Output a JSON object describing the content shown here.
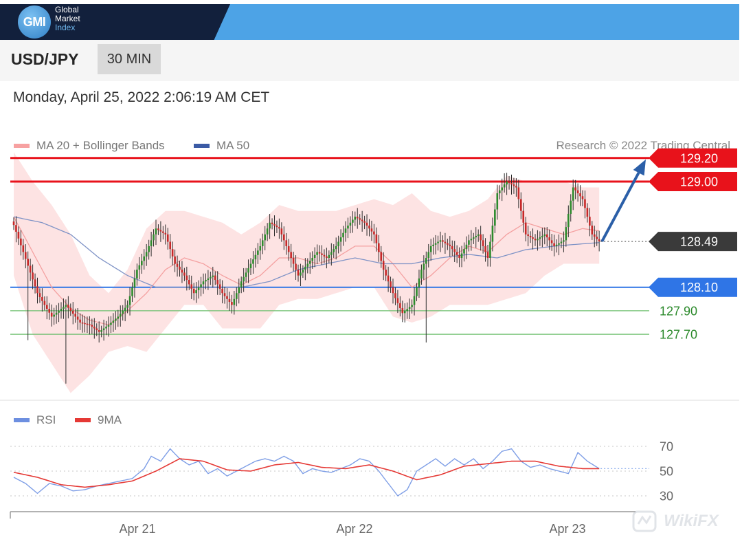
{
  "brand": {
    "logo_abbrev": "GMI",
    "name_lines": [
      "Global",
      "Market",
      "Index"
    ]
  },
  "header": {
    "symbol": "USD/JPY",
    "interval": "30 MIN"
  },
  "timestamp": "Monday, April 25, 2022 2:06:19 AM CET",
  "legend": {
    "ma_bb": {
      "label": "MA 20 + Bollinger Bands",
      "color": "#f7a1a1"
    },
    "ma50": {
      "label": "MA 50",
      "color": "#3b5ba5"
    }
  },
  "credit": "Research © 2022 Trading Central",
  "rsi_legend": {
    "rsi": {
      "label": "RSI",
      "color": "#6d8fe0"
    },
    "ma9": {
      "label": "9MA",
      "color": "#e53935"
    }
  },
  "watermark": "WikiFX",
  "chart_data": [
    {
      "type": "line",
      "name": "price",
      "ylim": [
        127.15,
        129.55
      ],
      "x_ticks": [
        "Apr 21",
        "Apr 22",
        "Apr 23"
      ],
      "levels": [
        {
          "value": 129.2,
          "label": "129.20",
          "color": "#e8121b",
          "style": "line-badge"
        },
        {
          "value": 129.0,
          "label": "129.00",
          "color": "#e8121b",
          "style": "line-badge"
        },
        {
          "value": 128.49,
          "label": "128.49",
          "color": "#3a3a3a",
          "style": "dotted-badge"
        },
        {
          "value": 128.1,
          "label": "128.10",
          "color": "#2f75e6",
          "style": "line-badge"
        },
        {
          "value": 127.9,
          "label": "127.90",
          "color": "#2c8a2c",
          "style": "line-text"
        },
        {
          "value": 127.7,
          "label": "127.70",
          "color": "#2c8a2c",
          "style": "line-text"
        }
      ],
      "forecast_arrow": {
        "from": 128.49,
        "to": 129.2,
        "color": "#2b5fa8"
      },
      "anchors": {
        "close": [
          [
            0,
            128.63
          ],
          [
            4,
            128.4
          ],
          [
            10,
            128.05
          ],
          [
            16,
            127.85
          ],
          [
            22,
            127.95
          ],
          [
            28,
            127.8
          ],
          [
            32,
            127.78
          ],
          [
            36,
            127.72
          ],
          [
            40,
            127.78
          ],
          [
            44,
            127.85
          ],
          [
            48,
            127.95
          ],
          [
            52,
            128.25
          ],
          [
            56,
            128.4
          ],
          [
            60,
            128.6
          ],
          [
            64,
            128.55
          ],
          [
            68,
            128.3
          ],
          [
            72,
            128.2
          ],
          [
            76,
            128.05
          ],
          [
            80,
            128.15
          ],
          [
            84,
            128.2
          ],
          [
            88,
            128.05
          ],
          [
            92,
            127.95
          ],
          [
            96,
            128.15
          ],
          [
            100,
            128.3
          ],
          [
            104,
            128.45
          ],
          [
            108,
            128.65
          ],
          [
            112,
            128.6
          ],
          [
            116,
            128.4
          ],
          [
            120,
            128.2
          ],
          [
            124,
            128.3
          ],
          [
            128,
            128.4
          ],
          [
            132,
            128.35
          ],
          [
            136,
            128.45
          ],
          [
            140,
            128.6
          ],
          [
            144,
            128.7
          ],
          [
            148,
            128.65
          ],
          [
            152,
            128.55
          ],
          [
            156,
            128.25
          ],
          [
            160,
            128.05
          ],
          [
            164,
            127.88
          ],
          [
            168,
            127.95
          ],
          [
            172,
            128.25
          ],
          [
            176,
            128.45
          ],
          [
            180,
            128.5
          ],
          [
            184,
            128.45
          ],
          [
            188,
            128.35
          ],
          [
            192,
            128.5
          ],
          [
            196,
            128.55
          ],
          [
            200,
            128.35
          ],
          [
            204,
            128.9
          ],
          [
            208,
            129.0
          ],
          [
            212,
            128.95
          ],
          [
            216,
            128.55
          ],
          [
            220,
            128.5
          ],
          [
            224,
            128.55
          ],
          [
            228,
            128.45
          ],
          [
            232,
            128.5
          ],
          [
            236,
            128.95
          ],
          [
            240,
            128.85
          ],
          [
            244,
            128.55
          ],
          [
            247,
            128.49
          ]
        ],
        "ma20": [
          [
            0,
            128.7
          ],
          [
            8,
            128.4
          ],
          [
            16,
            128.1
          ],
          [
            24,
            127.92
          ],
          [
            32,
            127.82
          ],
          [
            40,
            127.78
          ],
          [
            48,
            127.9
          ],
          [
            56,
            128.05
          ],
          [
            64,
            128.25
          ],
          [
            72,
            128.35
          ],
          [
            80,
            128.3
          ],
          [
            88,
            128.2
          ],
          [
            96,
            128.12
          ],
          [
            104,
            128.2
          ],
          [
            112,
            128.35
          ],
          [
            120,
            128.35
          ],
          [
            128,
            128.3
          ],
          [
            136,
            128.35
          ],
          [
            144,
            128.45
          ],
          [
            152,
            128.45
          ],
          [
            160,
            128.3
          ],
          [
            168,
            128.1
          ],
          [
            176,
            128.2
          ],
          [
            184,
            128.35
          ],
          [
            192,
            128.45
          ],
          [
            200,
            128.4
          ],
          [
            208,
            128.55
          ],
          [
            216,
            128.65
          ],
          [
            224,
            128.6
          ],
          [
            232,
            128.55
          ],
          [
            240,
            128.6
          ],
          [
            247,
            128.58
          ]
        ],
        "bb_upper": [
          [
            0,
            129.25
          ],
          [
            8,
            129.0
          ],
          [
            16,
            128.8
          ],
          [
            24,
            128.55
          ],
          [
            32,
            128.2
          ],
          [
            40,
            128.05
          ],
          [
            48,
            128.25
          ],
          [
            56,
            128.6
          ],
          [
            64,
            128.75
          ],
          [
            72,
            128.75
          ],
          [
            80,
            128.7
          ],
          [
            88,
            128.65
          ],
          [
            96,
            128.55
          ],
          [
            104,
            128.65
          ],
          [
            112,
            128.8
          ],
          [
            120,
            128.75
          ],
          [
            128,
            128.75
          ],
          [
            136,
            128.75
          ],
          [
            144,
            128.8
          ],
          [
            152,
            128.85
          ],
          [
            160,
            128.8
          ],
          [
            168,
            128.9
          ],
          [
            176,
            128.75
          ],
          [
            184,
            128.7
          ],
          [
            192,
            128.75
          ],
          [
            200,
            128.85
          ],
          [
            208,
            129.05
          ],
          [
            216,
            129.0
          ],
          [
            224,
            129.0
          ],
          [
            232,
            129.0
          ],
          [
            240,
            128.95
          ],
          [
            247,
            128.95
          ]
        ],
        "bb_lower": [
          [
            0,
            128.2
          ],
          [
            8,
            127.7
          ],
          [
            16,
            127.45
          ],
          [
            24,
            127.2
          ],
          [
            32,
            127.35
          ],
          [
            40,
            127.55
          ],
          [
            48,
            127.6
          ],
          [
            56,
            127.55
          ],
          [
            64,
            127.75
          ],
          [
            72,
            127.95
          ],
          [
            80,
            127.95
          ],
          [
            88,
            127.75
          ],
          [
            96,
            127.75
          ],
          [
            104,
            127.75
          ],
          [
            112,
            127.95
          ],
          [
            120,
            128.0
          ],
          [
            128,
            128.0
          ],
          [
            136,
            128.05
          ],
          [
            144,
            128.1
          ],
          [
            152,
            128.1
          ],
          [
            160,
            127.85
          ],
          [
            168,
            127.8
          ],
          [
            176,
            127.85
          ],
          [
            184,
            127.95
          ],
          [
            192,
            127.95
          ],
          [
            200,
            127.95
          ],
          [
            208,
            128.0
          ],
          [
            216,
            128.05
          ],
          [
            224,
            128.2
          ],
          [
            232,
            128.3
          ],
          [
            240,
            128.3
          ],
          [
            247,
            128.3
          ]
        ],
        "ma50": [
          [
            0,
            128.7
          ],
          [
            12,
            128.65
          ],
          [
            24,
            128.55
          ],
          [
            36,
            128.35
          ],
          [
            48,
            128.2
          ],
          [
            60,
            128.1
          ],
          [
            72,
            128.1
          ],
          [
            84,
            128.1
          ],
          [
            96,
            128.1
          ],
          [
            108,
            128.15
          ],
          [
            120,
            128.25
          ],
          [
            132,
            128.3
          ],
          [
            144,
            128.35
          ],
          [
            156,
            128.3
          ],
          [
            168,
            128.3
          ],
          [
            180,
            128.35
          ],
          [
            192,
            128.38
          ],
          [
            204,
            128.35
          ],
          [
            216,
            128.42
          ],
          [
            228,
            128.45
          ],
          [
            240,
            128.47
          ],
          [
            247,
            128.48
          ]
        ]
      }
    },
    {
      "type": "line",
      "name": "rsi",
      "ylim": [
        25,
        75
      ],
      "y_ticks": [
        70,
        50,
        30
      ],
      "series_anchors": {
        "rsi": [
          [
            0,
            45
          ],
          [
            5,
            40
          ],
          [
            10,
            32
          ],
          [
            15,
            40
          ],
          [
            20,
            38
          ],
          [
            25,
            34
          ],
          [
            30,
            35
          ],
          [
            35,
            38
          ],
          [
            40,
            40
          ],
          [
            45,
            42
          ],
          [
            50,
            44
          ],
          [
            55,
            52
          ],
          [
            58,
            62
          ],
          [
            62,
            58
          ],
          [
            66,
            68
          ],
          [
            70,
            60
          ],
          [
            74,
            55
          ],
          [
            78,
            58
          ],
          [
            82,
            48
          ],
          [
            86,
            52
          ],
          [
            90,
            46
          ],
          [
            94,
            50
          ],
          [
            98,
            54
          ],
          [
            102,
            58
          ],
          [
            106,
            60
          ],
          [
            110,
            58
          ],
          [
            114,
            62
          ],
          [
            118,
            58
          ],
          [
            122,
            48
          ],
          [
            126,
            52
          ],
          [
            130,
            50
          ],
          [
            134,
            49
          ],
          [
            138,
            52
          ],
          [
            142,
            55
          ],
          [
            146,
            60
          ],
          [
            150,
            58
          ],
          [
            154,
            50
          ],
          [
            158,
            40
          ],
          [
            162,
            30
          ],
          [
            166,
            35
          ],
          [
            170,
            50
          ],
          [
            174,
            55
          ],
          [
            178,
            60
          ],
          [
            182,
            54
          ],
          [
            186,
            60
          ],
          [
            190,
            55
          ],
          [
            194,
            60
          ],
          [
            198,
            52
          ],
          [
            202,
            58
          ],
          [
            206,
            66
          ],
          [
            210,
            68
          ],
          [
            214,
            58
          ],
          [
            218,
            53
          ],
          [
            222,
            55
          ],
          [
            226,
            52
          ],
          [
            230,
            50
          ],
          [
            234,
            48
          ],
          [
            238,
            65
          ],
          [
            242,
            58
          ],
          [
            247,
            52
          ]
        ],
        "ma9": [
          [
            0,
            49
          ],
          [
            10,
            45
          ],
          [
            20,
            39
          ],
          [
            30,
            37
          ],
          [
            40,
            39
          ],
          [
            50,
            42
          ],
          [
            60,
            50
          ],
          [
            70,
            60
          ],
          [
            80,
            58
          ],
          [
            90,
            51
          ],
          [
            100,
            50
          ],
          [
            110,
            55
          ],
          [
            120,
            57
          ],
          [
            130,
            53
          ],
          [
            140,
            52
          ],
          [
            150,
            55
          ],
          [
            160,
            50
          ],
          [
            170,
            43
          ],
          [
            180,
            47
          ],
          [
            190,
            54
          ],
          [
            200,
            56
          ],
          [
            210,
            58
          ],
          [
            220,
            58
          ],
          [
            230,
            54
          ],
          [
            240,
            52
          ],
          [
            247,
            52
          ]
        ]
      }
    }
  ]
}
